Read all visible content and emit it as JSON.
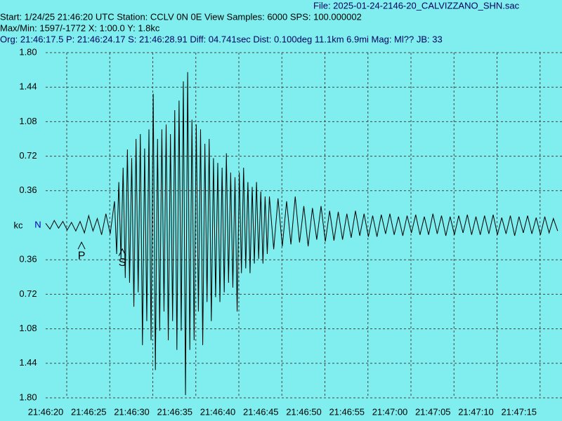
{
  "header": {
    "file": "File: 2025-01-24-2146-20_CALVIZZANO_SHN.sac",
    "start": "Start: 1/24/25 21:46:20 UTC Station: CCLV 0N 0E View Samples: 6000  SPS: 100.000002",
    "maxmin": "Max/Min: 1597/-1772 X: 1:00.0 Y: 1.8kc",
    "origin": "Org: 21:46:17.5 P: 21:46:24.17 S: 21:46:28.91 Diff: 04.741sec Dist: 0.100deg 11.1km 6.9mi  Mag: Ml?? JB: 33"
  },
  "chart_data": {
    "type": "line",
    "ylabel": "kc",
    "channel": "N",
    "color": "#000000",
    "grid": true,
    "xlim": [
      0,
      60
    ],
    "ylim": [
      -1.8,
      1.8
    ],
    "xticks": [
      {
        "value": 0,
        "label": "21:46:20"
      },
      {
        "value": 5,
        "label": "21:46:25"
      },
      {
        "value": 10,
        "label": "21:46:30"
      },
      {
        "value": 15,
        "label": "21:46:35"
      },
      {
        "value": 20,
        "label": "21:46:40"
      },
      {
        "value": 25,
        "label": "21:46:45"
      },
      {
        "value": 30,
        "label": "21:46:50"
      },
      {
        "value": 35,
        "label": "21:46:55"
      },
      {
        "value": 40,
        "label": "21:47:00"
      },
      {
        "value": 45,
        "label": "21:47:05"
      },
      {
        "value": 50,
        "label": "21:47:10"
      },
      {
        "value": 55,
        "label": "21:47:15"
      }
    ],
    "yticks": [
      {
        "value": 1.8,
        "label": "1.80"
      },
      1.44,
      1.08,
      0.72,
      0.36,
      {
        "value": -0.36,
        "label": "0.36"
      },
      {
        "value": -0.72,
        "label": "0.72"
      },
      {
        "value": -1.08,
        "label": "1.08"
      },
      {
        "value": -1.44,
        "label": "1.44"
      },
      {
        "value": -1.8,
        "label": "1.80"
      }
    ],
    "picks": [
      {
        "label": "P",
        "x": 4.17,
        "y": -0.25
      },
      {
        "label": "S",
        "x": 8.91,
        "y": -0.32
      }
    ],
    "x": [
      0,
      0.5,
      1,
      1.5,
      2,
      2.5,
      3,
      3.5,
      4,
      4.5,
      5,
      5.5,
      6,
      6.5,
      7,
      7.5,
      8,
      8.25,
      8.5,
      8.75,
      9,
      9.25,
      9.5,
      9.75,
      10,
      10.25,
      10.5,
      10.75,
      11,
      11.25,
      11.5,
      11.75,
      12,
      12.25,
      12.5,
      12.75,
      13,
      13.25,
      13.5,
      13.75,
      14,
      14.25,
      14.5,
      14.75,
      15,
      15.25,
      15.5,
      15.75,
      16,
      16.25,
      16.5,
      16.75,
      17,
      17.25,
      17.5,
      17.75,
      18,
      18.25,
      18.5,
      18.75,
      19,
      19.25,
      19.5,
      19.75,
      20,
      20.25,
      20.5,
      20.75,
      21,
      21.25,
      21.5,
      21.75,
      22,
      22.25,
      22.5,
      22.75,
      23,
      23.25,
      23.5,
      23.75,
      24,
      24.25,
      24.5,
      24.75,
      25,
      25.25,
      25.5,
      25.75,
      26,
      26.5,
      27,
      27.5,
      28,
      28.5,
      29,
      29.5,
      30,
      30.5,
      31,
      31.5,
      32,
      32.5,
      33,
      33.5,
      34,
      34.5,
      35,
      35.5,
      36,
      36.5,
      37,
      37.5,
      38,
      38.5,
      39,
      39.5,
      40,
      40.5,
      41,
      41.5,
      42,
      42.5,
      43,
      43.5,
      44,
      44.5,
      45,
      45.5,
      46,
      46.5,
      47,
      47.5,
      48,
      48.5,
      49,
      49.5,
      50,
      50.5,
      51,
      51.5,
      52,
      52.5,
      53,
      53.5,
      54,
      54.5,
      55,
      55.5,
      56,
      56.5,
      57,
      57.5,
      58,
      58.5,
      59,
      59.5
    ],
    "values": [
      0.02,
      -0.04,
      0.05,
      -0.03,
      0.04,
      -0.05,
      0.03,
      -0.06,
      0.04,
      -0.08,
      0.1,
      -0.06,
      0.07,
      -0.1,
      0.12,
      -0.09,
      0.25,
      -0.3,
      0.45,
      -0.35,
      0.6,
      -0.55,
      0.79,
      -0.6,
      0.7,
      -0.85,
      0.9,
      -0.7,
      0.95,
      -1.25,
      0.8,
      -1.0,
      1.0,
      -1.2,
      1.37,
      -1.51,
      0.9,
      -1.1,
      1.0,
      -0.9,
      1.05,
      -1.2,
      0.95,
      -1.0,
      1.2,
      -1.3,
      1.3,
      -1.1,
      1.5,
      -1.772,
      1.597,
      -1.3,
      1.1,
      -1.2,
      1.05,
      -0.9,
      1.0,
      -1.25,
      0.85,
      -0.8,
      0.9,
      -1.0,
      0.7,
      -0.75,
      0.65,
      -0.8,
      0.6,
      -0.7,
      0.75,
      -0.6,
      0.55,
      -0.65,
      0.5,
      -0.9,
      0.55,
      -0.5,
      0.6,
      -0.45,
      0.45,
      -0.5,
      0.4,
      -0.4,
      0.45,
      -0.35,
      0.35,
      -0.4,
      0.3,
      -0.3,
      0.3,
      -0.25,
      0.28,
      -0.22,
      0.25,
      -0.2,
      0.3,
      -0.18,
      0.2,
      -0.22,
      0.18,
      -0.15,
      0.2,
      -0.17,
      0.15,
      -0.16,
      0.14,
      -0.15,
      0.12,
      -0.13,
      0.15,
      -0.11,
      0.12,
      -0.12,
      0.1,
      -0.12,
      0.11,
      -0.09,
      0.12,
      -0.1,
      0.09,
      -0.11,
      0.1,
      -0.08,
      0.11,
      -0.1,
      0.09,
      -0.1,
      0.12,
      -0.09,
      0.1,
      -0.11,
      0.09,
      -0.1,
      0.1,
      -0.08,
      0.11,
      -0.1,
      0.09,
      -0.1,
      0.1,
      -0.09,
      0.11,
      -0.1,
      0.08,
      -0.09,
      0.1,
      -0.11,
      0.09,
      -0.08,
      0.1,
      -0.09,
      0.08,
      -0.1,
      0.09,
      -0.08,
      0.07,
      -0.06
    ]
  }
}
